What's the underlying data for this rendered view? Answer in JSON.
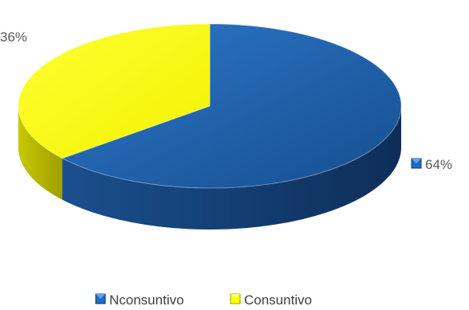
{
  "chart_data": {
    "type": "pie",
    "style": "3d",
    "title": "",
    "categories": [
      "Nconsuntivo",
      "Consuntivo"
    ],
    "values": [
      64,
      36
    ],
    "labels": [
      "64%",
      "36%"
    ],
    "colors": [
      "#1F5FA8",
      "#FFFF00"
    ],
    "side_colors": [
      "#123A6B",
      "#B3B300"
    ],
    "legend_placement": "bottom"
  }
}
